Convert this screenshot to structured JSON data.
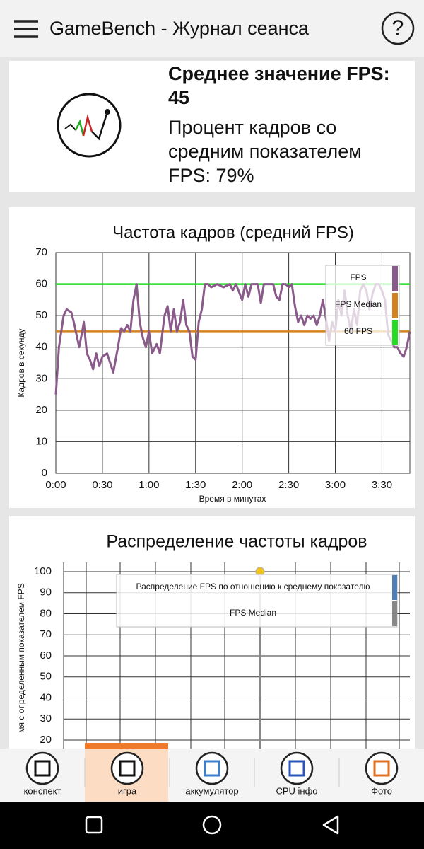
{
  "header": {
    "title": "GameBench - Журнал сеанса",
    "help": "?"
  },
  "summary": {
    "avg_label": "Среднее значение FPS:",
    "avg_value": "45",
    "share_label": "Процент кадров со средним показателем FPS:",
    "share_value": "79%"
  },
  "charts": [
    {
      "type": "line",
      "title": "Частота кадров (средний FPS)",
      "ylabel": "Кадров в секунду",
      "xlabel": "Время в минутах",
      "xlim": [
        0,
        228
      ],
      "ylim": [
        0,
        70
      ],
      "grid": true,
      "xticks": [
        {
          "value": 0,
          "label": "0:00"
        },
        {
          "value": 30,
          "label": "0:30"
        },
        {
          "value": 60,
          "label": "1:00"
        },
        {
          "value": 90,
          "label": "1:30"
        },
        {
          "value": 120,
          "label": "2:00"
        },
        {
          "value": 150,
          "label": "2:30"
        },
        {
          "value": 180,
          "label": "3:00"
        },
        {
          "value": 210,
          "label": "3:30"
        }
      ],
      "yticks": [
        0,
        10,
        20,
        30,
        40,
        50,
        60,
        70
      ],
      "x": [
        0,
        2,
        5,
        7,
        10,
        12,
        15,
        17,
        18,
        20,
        22,
        24,
        26,
        28,
        30,
        33,
        35,
        37,
        40,
        42,
        44,
        46,
        48,
        50,
        52,
        54,
        56,
        58,
        60,
        62,
        65,
        67,
        70,
        72,
        74,
        76,
        78,
        80,
        82,
        84,
        86,
        88,
        90,
        92,
        94,
        96,
        98,
        100,
        104,
        108,
        112,
        114,
        116,
        120,
        122,
        124,
        126,
        130,
        132,
        134,
        140,
        142,
        144,
        146,
        148,
        150,
        152,
        154,
        156,
        158,
        160,
        162,
        164,
        166,
        168,
        170,
        172,
        174,
        176,
        178,
        180,
        182,
        184,
        186,
        188,
        190,
        192,
        194,
        196,
        198,
        200,
        202,
        204,
        206,
        208,
        210,
        212,
        214,
        216,
        218,
        220,
        222,
        224,
        226,
        228
      ],
      "series": [
        {
          "name": "FPS",
          "color": "#8a5a8a",
          "values": [
            25,
            40,
            50,
            52,
            51,
            47,
            40,
            45,
            48,
            38,
            36,
            33,
            38,
            34,
            37,
            38,
            35,
            32,
            40,
            46,
            45,
            47,
            45,
            55,
            60,
            48,
            43,
            40,
            45,
            38,
            41,
            38,
            50,
            53,
            45,
            52,
            45,
            48,
            55,
            47,
            45,
            37,
            36,
            48,
            52,
            60,
            60,
            59,
            60,
            59,
            60,
            58,
            60,
            55,
            60,
            56,
            60,
            60,
            54,
            60,
            60,
            56,
            55,
            60,
            60,
            59,
            60,
            53,
            48,
            50,
            47,
            50,
            49,
            50,
            47,
            50,
            55,
            49,
            42,
            48,
            45,
            55,
            50,
            58,
            50,
            45,
            52,
            47,
            58,
            60,
            58,
            52,
            57,
            60,
            60,
            58,
            55,
            44,
            42,
            40,
            40,
            38,
            37,
            40,
            45
          ]
        }
      ],
      "reference_lines": [
        {
          "name": "FPS Median",
          "color": "#d4821e",
          "value": 45
        },
        {
          "name": "60 FPS",
          "color": "#22dd22",
          "value": 60
        }
      ]
    },
    {
      "type": "line",
      "title": "Распределение частоты кадров",
      "ylabel": "мя с определенным показателем FPS",
      "ylim": [
        20,
        100
      ],
      "yticks": [
        20,
        30,
        40,
        50,
        60,
        70,
        80,
        90,
        100
      ],
      "grid": true,
      "series": [
        {
          "name": "Распределение FPS по отношению к среднему показателю",
          "color": "#4f7fb5"
        },
        {
          "name": "FPS Median",
          "color": "#888888"
        }
      ]
    }
  ],
  "tabs": [
    "конспект",
    "игра",
    "аккумулятор",
    "CPU інфо",
    "Фото"
  ]
}
